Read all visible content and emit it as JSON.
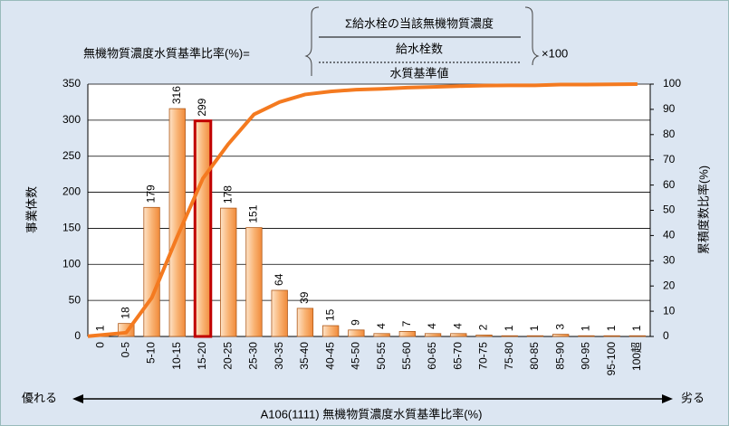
{
  "chart_data": {
    "type": "bar",
    "formula": {
      "left": "無機物質濃度水質基準比率(%)=",
      "numerator": "Σ給水栓の当該無機物質濃度",
      "inner_denominator": "給水栓数",
      "denominator": "水質基準値",
      "multiplier": "×100"
    },
    "ylabel": "事業体数",
    "y2label": "累積度数比率(%)",
    "xlabel": "A106(1111) 無機物質濃度水質基準比率(%)",
    "left_note": "優れる",
    "right_note": "劣る",
    "categories": [
      "0",
      "0-5",
      "5-10",
      "10-15",
      "15-20",
      "20-25",
      "25-30",
      "30-35",
      "35-40",
      "40-45",
      "45-50",
      "50-55",
      "55-60",
      "60-65",
      "65-70",
      "70-75",
      "75-80",
      "80-85",
      "85-90",
      "90-95",
      "95-100",
      "100超"
    ],
    "series": [
      {
        "type": "bar",
        "color": "#f9b475",
        "values": [
          1,
          18,
          179,
          316,
          299,
          178,
          151,
          64,
          39,
          15,
          9,
          4,
          7,
          4,
          4,
          2,
          1,
          1,
          3,
          1,
          1,
          1
        ]
      },
      {
        "type": "line",
        "axis": "y2",
        "color": "#f47a20",
        "values": [
          0.1,
          1.5,
          15.3,
          39.6,
          62.6,
          76.3,
          88.0,
          92.9,
          95.9,
          97.1,
          97.8,
          98.1,
          98.6,
          98.9,
          99.2,
          99.4,
          99.5,
          99.5,
          99.8,
          99.8,
          99.9,
          100
        ]
      }
    ],
    "highlight": "15-20",
    "ylim": [
      0,
      350
    ],
    "yticks": [
      0,
      50,
      100,
      150,
      200,
      250,
      300,
      350
    ],
    "y2lim": [
      0,
      100
    ],
    "y2ticks": [
      0,
      10,
      20,
      30,
      40,
      50,
      60,
      70,
      80,
      90,
      100
    ],
    "grid": true
  }
}
